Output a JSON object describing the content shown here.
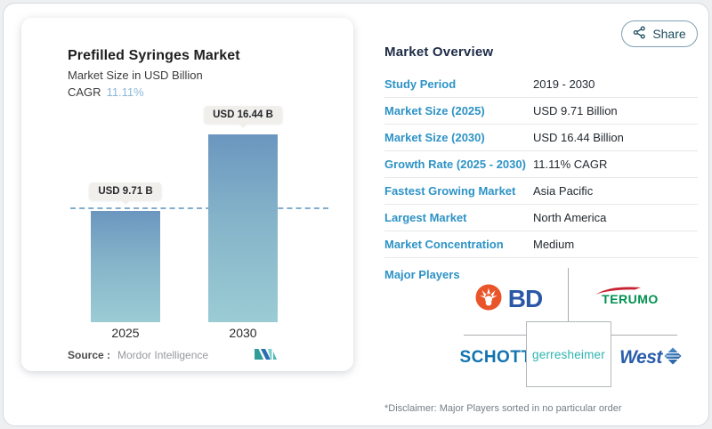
{
  "share": {
    "label": "Share"
  },
  "chart_card": {
    "title": "Prefilled Syringes Market",
    "subtitle": "Market Size in USD Billion",
    "cagr_label": "CAGR",
    "cagr_value": "11.11%",
    "source_label": "Source :",
    "source_value": "Mordor Intelligence"
  },
  "chart_data": {
    "type": "bar",
    "title": "Prefilled Syringes Market",
    "subtitle": "Market Size in USD Billion",
    "cagr": "11.11%",
    "categories": [
      "2025",
      "2030"
    ],
    "values": [
      9.71,
      16.44
    ],
    "bar_labels": [
      "USD 9.71 B",
      "USD 16.44 B"
    ],
    "ylabel": "USD Billion",
    "ylim": [
      0,
      18
    ],
    "grid": false,
    "legend": "none",
    "reference_line": {
      "value": 9.71,
      "style": "dashed"
    },
    "colors": {
      "bar_gradient_top": "#6b96bf",
      "bar_gradient_bottom": "#9bccd4",
      "dashed_line": "#82aecb",
      "tooltip_bg": "#f0efec"
    }
  },
  "overview": {
    "title": "Market Overview",
    "rows": [
      {
        "label": "Study Period",
        "value": "2019 - 2030"
      },
      {
        "label": "Market Size (2025)",
        "value": "USD 9.71 Billion"
      },
      {
        "label": "Market Size (2030)",
        "value": "USD 16.44 Billion"
      },
      {
        "label": "Growth Rate (2025 - 2030)",
        "value": "11.11% CAGR"
      },
      {
        "label": "Fastest Growing Market",
        "value": "Asia Pacific"
      },
      {
        "label": "Largest Market",
        "value": "North America"
      },
      {
        "label": "Market Concentration",
        "value": "Medium"
      }
    ],
    "major_players_label": "Major Players",
    "players": {
      "bd": "BD",
      "terumo": "TERUMO",
      "schott": "SCHOTT",
      "gerresheimer": "gerresheimer",
      "west": "West"
    },
    "disclaimer": "*Disclaimer: Major Players sorted in no particular order"
  },
  "colors": {
    "label_blue": "#2d93c6",
    "header_navy": "#1c2b45",
    "cagr_light_blue": "#8cb8d8",
    "bd_orange": "#e95428",
    "bd_blue": "#2b57a7",
    "terumo_green": "#009150",
    "terumo_red": "#c82333",
    "schott_blue": "#1173b0",
    "gerresheimer_teal": "#2cb4ae",
    "west_navy": "#2a5caa"
  }
}
